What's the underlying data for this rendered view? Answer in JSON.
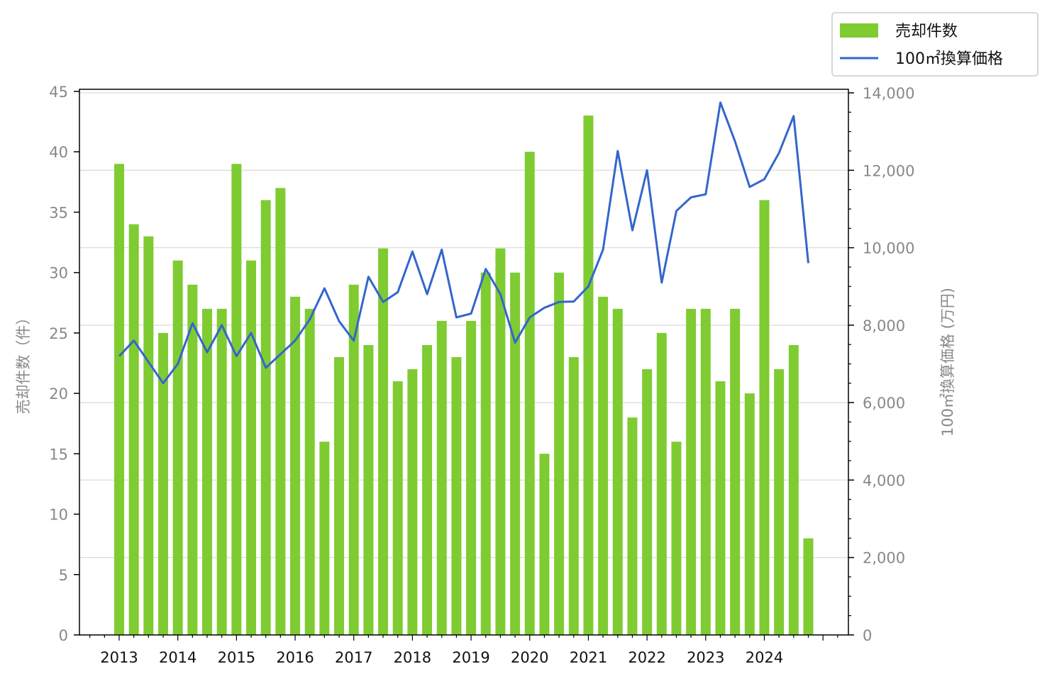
{
  "chart_data": {
    "type": "bar",
    "title": "",
    "colors": {
      "bars": "#7fcb32",
      "line": "#3366cc",
      "grid": "#d9d9d9"
    },
    "x_tick_labels": [
      "2013",
      "2014",
      "2015",
      "2016",
      "2017",
      "2018",
      "2019",
      "2020",
      "2021",
      "2022",
      "2023",
      "2024"
    ],
    "x_start_year": 2013,
    "periods_per_year": 4,
    "series": [
      {
        "name": "売却件数",
        "type": "bar",
        "axis": "left",
        "values": [
          39,
          34,
          33,
          25,
          31,
          29,
          27,
          27,
          39,
          31,
          36,
          37,
          28,
          27,
          16,
          23,
          29,
          24,
          32,
          21,
          22,
          24,
          26,
          23,
          26,
          30,
          32,
          30,
          40,
          15,
          30,
          23,
          43,
          28,
          27,
          18,
          22,
          25,
          16,
          27,
          27,
          21,
          27,
          20,
          36,
          22,
          24,
          8
        ]
      },
      {
        "name": "100㎡換算価格",
        "type": "line",
        "axis": "right",
        "values": [
          7200,
          7600,
          7050,
          6500,
          7000,
          8050,
          7300,
          8000,
          7200,
          7800,
          6900,
          7250,
          7600,
          8150,
          8950,
          8100,
          7600,
          9250,
          8600,
          8850,
          9900,
          8800,
          9950,
          8200,
          8300,
          9450,
          8800,
          7550,
          8200,
          8450,
          8600,
          8610,
          9000,
          9950,
          12500,
          10450,
          12000,
          9100,
          10950,
          11300,
          11380,
          13750,
          12750,
          11570,
          11770,
          12450,
          13400,
          9600
        ]
      }
    ],
    "y_left": {
      "label": "売却件数（件）",
      "ticks": [
        "0",
        "5",
        "10",
        "15",
        "20",
        "25",
        "30",
        "35",
        "40",
        "45"
      ],
      "lim": [
        0,
        45
      ]
    },
    "y_right": {
      "label": "100㎡換算価格 (万円)",
      "ticks": [
        "0",
        "2,000",
        "4,000",
        "6,000",
        "8,000",
        "10,000",
        "12,000",
        "14,000"
      ],
      "lim": [
        0,
        14000
      ]
    },
    "grid": "horizontal (right axis)",
    "legend": {
      "placement": "top-right",
      "entries": [
        "売却件数",
        "100㎡換算価格"
      ]
    }
  }
}
